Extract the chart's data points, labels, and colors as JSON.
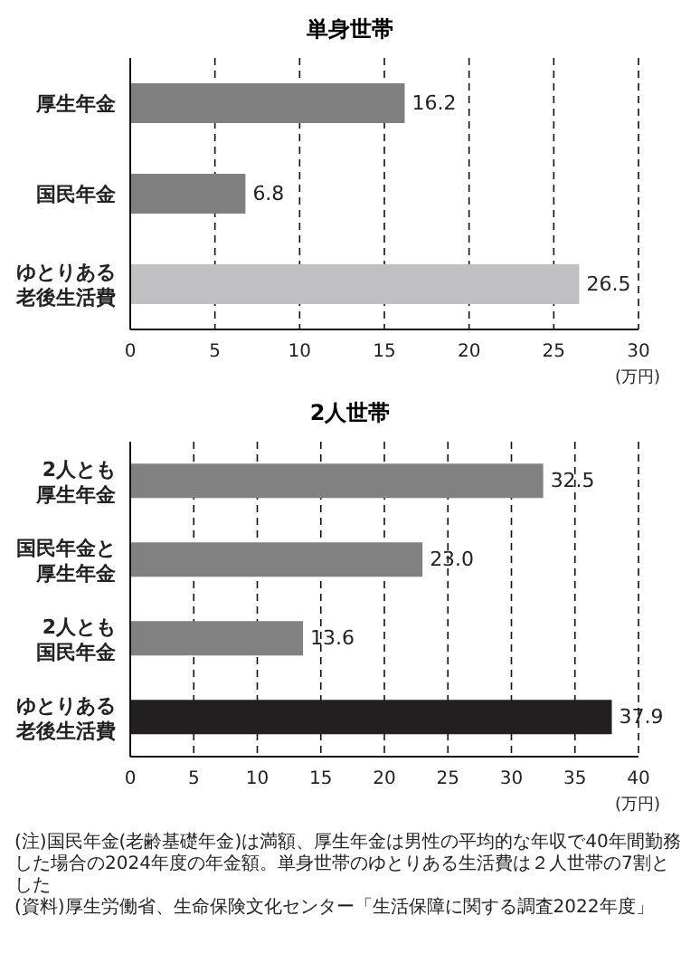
{
  "chart_data": [
    {
      "type": "bar",
      "orientation": "horizontal",
      "title": "単身世帯",
      "xlabel": "(万円)",
      "categories": [
        "厚生年金",
        "国民年金",
        "ゆとりある老後生活費"
      ],
      "values": [
        16.2,
        6.8,
        26.5
      ],
      "colors": [
        "#808080",
        "#808080",
        "#c0c0c2"
      ],
      "value_labels": [
        "16.2",
        "6.8",
        "26.5"
      ],
      "xlim": [
        0,
        30
      ],
      "xticks": [
        0,
        5,
        10,
        15,
        20,
        25,
        30
      ],
      "grid": "x"
    },
    {
      "type": "bar",
      "orientation": "horizontal",
      "title": "2人世帯",
      "xlabel": "(万円)",
      "categories": [
        "2人とも厚生年金",
        "国民年金と厚生年金",
        "2人とも国民年金",
        "ゆとりある老後生活費"
      ],
      "values": [
        32.5,
        23.0,
        13.6,
        37.9
      ],
      "colors": [
        "#818181",
        "#818181",
        "#818181",
        "#231f20"
      ],
      "value_labels": [
        "32.5",
        "23.0",
        "13.6",
        "37.9"
      ],
      "xlim": [
        0,
        40
      ],
      "xticks": [
        0,
        5,
        10,
        15,
        20,
        25,
        30,
        35,
        40
      ],
      "grid": "x",
      "annotations": [
        "(注)国民年金(老齢基礎年金)は満額、厚生年金は男性の平均的な年収で40年間勤務した場合の2024年度の年金額。単身世帯のゆとりある生活費は２人世帯の7割とした",
        "(資料)厚生労働省、生命保険文化センター「生活保障に関する調査2022年度」"
      ]
    }
  ]
}
